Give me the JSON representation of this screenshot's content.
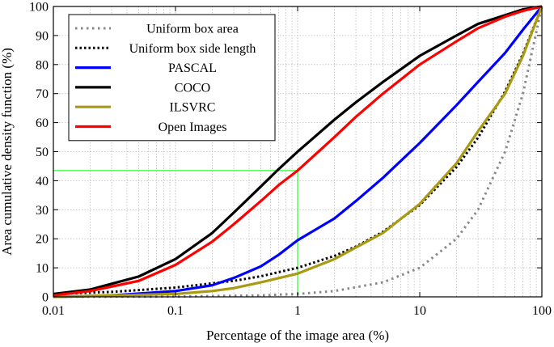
{
  "chart_data": {
    "type": "line",
    "title": "",
    "xlabel": "Percentage of the image area (%)",
    "ylabel": "Area cumulative density function (%)",
    "xscale": "log",
    "xlim": [
      0.01,
      100
    ],
    "ylim": [
      0,
      100
    ],
    "x_ticks": [
      0.01,
      0.1,
      1,
      10,
      100
    ],
    "x_tick_labels": [
      "0.01",
      "0.1",
      "1",
      "10",
      "100"
    ],
    "y_ticks": [
      0,
      10,
      20,
      30,
      40,
      50,
      60,
      70,
      80,
      90,
      100
    ],
    "y_tick_labels": [
      "0",
      "10",
      "20",
      "30",
      "40",
      "50",
      "60",
      "70",
      "80",
      "90",
      "100"
    ],
    "grid": true,
    "legend_position": "top-left",
    "series": [
      {
        "name": "Uniform box area",
        "color": "#888888",
        "style": "dotted",
        "x": [
          0.01,
          0.1,
          0.5,
          1,
          2,
          5,
          10,
          20,
          30,
          50,
          70,
          100
        ],
        "y": [
          0.01,
          0.1,
          0.5,
          1,
          2,
          5,
          10,
          20,
          30,
          50,
          70,
          100
        ]
      },
      {
        "name": "Uniform box side length",
        "color": "#000000",
        "style": "dotted",
        "x": [
          0.01,
          0.03,
          0.1,
          0.3,
          0.5,
          1,
          2,
          3,
          5,
          10,
          20,
          30,
          50,
          70,
          100
        ],
        "y": [
          1,
          1.7,
          3.2,
          5.5,
          7.1,
          10,
          14.1,
          17.3,
          22.4,
          31.6,
          44.7,
          54.8,
          70.7,
          83.7,
          100
        ]
      },
      {
        "name": "PASCAL",
        "color": "#0000ff",
        "style": "solid",
        "x": [
          0.01,
          0.03,
          0.1,
          0.2,
          0.3,
          0.5,
          0.7,
          1,
          2,
          3,
          5,
          10,
          20,
          30,
          50,
          70,
          100
        ],
        "y": [
          0,
          0.5,
          2,
          4,
          6.5,
          10.5,
          14.5,
          19.5,
          27,
          33,
          41,
          53,
          66,
          74,
          84,
          92,
          100
        ]
      },
      {
        "name": "COCO",
        "color": "#000000",
        "style": "solid",
        "x": [
          0.01,
          0.02,
          0.05,
          0.1,
          0.2,
          0.3,
          0.5,
          0.7,
          1,
          2,
          3,
          5,
          10,
          20,
          30,
          50,
          70,
          100
        ],
        "y": [
          1,
          2.5,
          7,
          13,
          22,
          29,
          38,
          44,
          50,
          61,
          67,
          74,
          83,
          90,
          94,
          97,
          99,
          100
        ]
      },
      {
        "name": "ILSVRC",
        "color": "#a89a12",
        "style": "solid",
        "x": [
          0.01,
          0.1,
          0.2,
          0.3,
          0.5,
          1,
          2,
          3,
          5,
          10,
          20,
          30,
          50,
          70,
          100
        ],
        "y": [
          0,
          1,
          2,
          3,
          5,
          8,
          13,
          17,
          22,
          32,
          46,
          57,
          70,
          83,
          100
        ]
      },
      {
        "name": "Open Images",
        "color": "#ff0000",
        "style": "solid",
        "x": [
          0.01,
          0.02,
          0.05,
          0.1,
          0.2,
          0.3,
          0.5,
          0.7,
          1,
          2,
          3,
          5,
          10,
          20,
          30,
          50,
          70,
          100
        ],
        "y": [
          0.5,
          2,
          5.5,
          11,
          19,
          25,
          33,
          38.5,
          43.5,
          55,
          62,
          70,
          80,
          88,
          92.5,
          96.5,
          98.5,
          100
        ]
      }
    ],
    "annotations": [
      {
        "type": "guide-line",
        "color": "#00ff00",
        "x": 1,
        "y": 43.5
      }
    ]
  }
}
